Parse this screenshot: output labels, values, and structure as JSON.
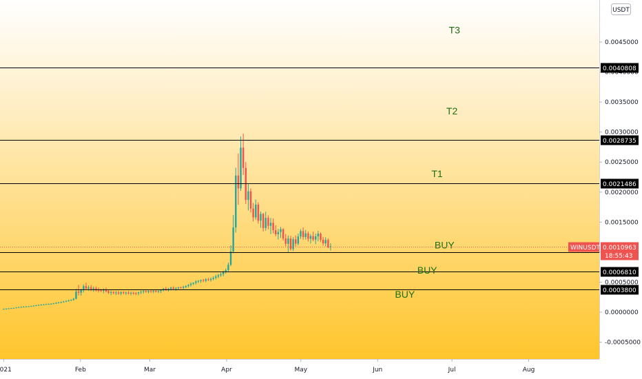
{
  "chart_data": {
    "type": "candlestick",
    "symbol": "WINUSDT",
    "currency": "USDT",
    "countdown": "18:55:43",
    "price_label": "0.0010963",
    "last_price": 0.0010963,
    "y_ticks": [
      "0.0045000",
      "0.0040000",
      "0.0035000",
      "0.0030000",
      "0.0025000",
      "0.0020000",
      "0.0015000",
      "0.0010000",
      "0.0005000",
      "0.0000000",
      "-0.0005000"
    ],
    "y_tick_values": [
      0.0045,
      0.004,
      0.0035,
      0.003,
      0.0025,
      0.002,
      0.0015,
      0.001,
      0.0005,
      0,
      -0.0005
    ],
    "x_ticks": [
      "2021",
      "Feb",
      "Mar",
      "Apr",
      "May",
      "Jun",
      "Jul",
      "Aug"
    ],
    "x_tick_days": [
      0,
      31,
      59,
      90,
      120,
      151,
      181,
      212
    ],
    "ylim": [
      -0.00078,
      0.0052
    ],
    "xlim_days": [
      -1.5,
      240.5
    ],
    "levels": [
      {
        "price": 0.0040808,
        "label": "0.0040808"
      },
      {
        "price": 0.0028735,
        "label": "0.0028735"
      },
      {
        "price": 0.0021486,
        "label": "0.0021486"
      },
      {
        "price": 0.0009961,
        "label": "0.0009961"
      },
      {
        "price": 0.000681,
        "label": "0.0006810"
      },
      {
        "price": 0.00038,
        "label": "0.0003800"
      }
    ],
    "annotations": [
      {
        "text": "T3",
        "day": 182,
        "price": 0.0047
      },
      {
        "text": "T2",
        "day": 181,
        "price": 0.00335
      },
      {
        "text": "T1",
        "day": 175,
        "price": 0.00231
      },
      {
        "text": "BUY",
        "day": 178,
        "price": 0.00112
      },
      {
        "text": "BUY",
        "day": 171,
        "price": 0.0007
      },
      {
        "text": "BUY",
        "day": 162,
        "price": 0.0003
      }
    ],
    "ohlc": [
      [
        5.2e-05,
        6.1e-05,
        4.7e-05,
        5.6e-05
      ],
      [
        5.6e-05,
        6.5e-05,
        5e-05,
        5.9e-05
      ],
      [
        5.9e-05,
        6.8e-05,
        5.3e-05,
        6.3e-05
      ],
      [
        6.3e-05,
        7.2e-05,
        5.8e-05,
        6.7e-05
      ],
      [
        6.7e-05,
        7.5e-05,
        6.3e-05,
        7.1e-05
      ],
      [
        7.1e-05,
        8.2e-05,
        6.7e-05,
        7.8e-05
      ],
      [
        7.8e-05,
        8.9e-05,
        7.3e-05,
        8.4e-05
      ],
      [
        8.4e-05,
        9.5e-05,
        7.9e-05,
        8.8e-05
      ],
      [
        8.8e-05,
        9.7e-05,
        8.2e-05,
        9.1e-05
      ],
      [
        9.1e-05,
        0.000101,
        8.5e-05,
        9.4e-05
      ],
      [
        9.4e-05,
        0.000104,
        8.9e-05,
        9.8e-05
      ],
      [
        9.8e-05,
        0.000108,
        9.2e-05,
        0.000102
      ],
      [
        0.000102,
        0.000114,
        9.6e-05,
        0.000108
      ],
      [
        0.000108,
        0.000121,
        0.000102,
        0.000114
      ],
      [
        0.000114,
        0.000128,
        0.000108,
        0.00012
      ],
      [
        0.00012,
        0.000133,
        0.000112,
        0.000125
      ],
      [
        0.000125,
        0.000137,
        0.000117,
        0.000129
      ],
      [
        0.000129,
        0.000141,
        0.000121,
        0.000133
      ],
      [
        0.000133,
        0.000145,
        0.000125,
        0.000137
      ],
      [
        0.000137,
        0.000149,
        0.000129,
        0.000141
      ],
      [
        0.000141,
        0.000156,
        0.000133,
        0.000147
      ],
      [
        0.000147,
        0.000165,
        0.000139,
        0.000155
      ],
      [
        0.000155,
        0.000171,
        0.000146,
        0.00016
      ],
      [
        0.00016,
        0.000179,
        0.00015,
        0.000168
      ],
      [
        0.000168,
        0.000189,
        0.000159,
        0.000176
      ],
      [
        0.000176,
        0.000198,
        0.000167,
        0.000186
      ],
      [
        0.000186,
        0.000208,
        0.000176,
        0.000195
      ],
      [
        0.000195,
        0.000214,
        0.000184,
        0.000205
      ],
      [
        0.000205,
        0.000239,
        0.000192,
        0.000222
      ],
      [
        0.000222,
        0.000391,
        0.000214,
        0.000343
      ],
      [
        0.000343,
        0.000454,
        0.000281,
        0.000325
      ],
      [
        0.000325,
        0.00039,
        0.000276,
        0.00037
      ],
      [
        0.00037,
        0.000462,
        0.000327,
        0.000433
      ],
      [
        0.000433,
        0.000493,
        0.000366,
        0.000392
      ],
      [
        0.000392,
        0.000446,
        0.000357,
        0.000413
      ],
      [
        0.000413,
        0.00045,
        0.000352,
        0.000384
      ],
      [
        0.000384,
        0.000427,
        0.000339,
        0.000397
      ],
      [
        0.000397,
        0.000428,
        0.000345,
        0.000373
      ],
      [
        0.000373,
        0.000412,
        0.000327,
        0.000371
      ],
      [
        0.000371,
        0.000389,
        0.000335,
        0.000359
      ],
      [
        0.000359,
        0.000398,
        0.000315,
        0.000378
      ],
      [
        0.000378,
        0.00041,
        0.000328,
        0.000349
      ],
      [
        0.000349,
        0.000377,
        0.000303,
        0.000325
      ],
      [
        0.000325,
        0.00036,
        0.000284,
        0.000334
      ],
      [
        0.000334,
        0.000351,
        0.000299,
        0.000319
      ],
      [
        0.000319,
        0.000354,
        0.000284,
        0.000329
      ],
      [
        0.000329,
        0.000355,
        0.000289,
        0.000311
      ],
      [
        0.000311,
        0.000349,
        0.000281,
        0.000332
      ],
      [
        0.000332,
        0.000352,
        0.000298,
        0.000319
      ],
      [
        0.000319,
        0.000344,
        0.000286,
        0.000327
      ],
      [
        0.000327,
        0.000352,
        0.000295,
        0.000312
      ],
      [
        0.000312,
        0.000341,
        0.000281,
        0.000323
      ],
      [
        0.000323,
        0.000342,
        0.000293,
        0.000318
      ],
      [
        0.000318,
        0.000335,
        0.000284,
        0.000315
      ],
      [
        0.000315,
        0.000341,
        0.000282,
        0.00033
      ],
      [
        0.00033,
        0.000363,
        0.000301,
        0.000341
      ],
      [
        0.000341,
        0.000374,
        0.000309,
        0.000352
      ],
      [
        0.000352,
        0.000362,
        0.000325,
        0.000339
      ],
      [
        0.000339,
        0.000364,
        0.000313,
        0.000355
      ],
      [
        0.000355,
        0.000366,
        0.000322,
        0.000344
      ],
      [
        0.000344,
        0.000379,
        0.000316,
        0.000356
      ],
      [
        0.000356,
        0.000372,
        0.000329,
        0.000342
      ],
      [
        0.000342,
        0.000364,
        0.000318,
        0.000353
      ],
      [
        0.000353,
        0.000383,
        0.00032,
        0.000367
      ],
      [
        0.000367,
        0.000404,
        0.000346,
        0.000392
      ],
      [
        0.000392,
        0.000421,
        0.000356,
        0.000374
      ],
      [
        0.000374,
        0.000406,
        0.000344,
        0.000387
      ],
      [
        0.000387,
        0.000423,
        0.000363,
        0.000408
      ],
      [
        0.000408,
        0.000431,
        0.000373,
        0.000389
      ],
      [
        0.000389,
        0.000417,
        0.000358,
        0.0004
      ],
      [
        0.0004,
        0.000422,
        0.000375,
        0.000415
      ],
      [
        0.000415,
        0.000427,
        0.000392,
        0.000404
      ],
      [
        0.000404,
        0.00044,
        0.000376,
        0.000421
      ],
      [
        0.000421,
        0.000448,
        0.000397,
        0.000436
      ],
      [
        0.000436,
        0.000468,
        0.000411,
        0.000455
      ],
      [
        0.000455,
        0.000496,
        0.000426,
        0.000473
      ],
      [
        0.000473,
        0.000498,
        0.000453,
        0.00049
      ],
      [
        0.00049,
        0.000531,
        0.000461,
        0.000512
      ],
      [
        0.000512,
        0.000536,
        0.000486,
        0.000521
      ],
      [
        0.000521,
        0.000546,
        0.000489,
        0.000535
      ],
      [
        0.000535,
        0.000555,
        0.000501,
        0.000524
      ],
      [
        0.000524,
        0.000567,
        0.000498,
        0.000548
      ],
      [
        0.000548,
        0.000573,
        0.00052,
        0.000536
      ],
      [
        0.000536,
        0.000576,
        0.000509,
        0.000555
      ],
      [
        0.000555,
        0.000596,
        0.00053,
        0.000573
      ],
      [
        0.000573,
        0.000624,
        0.000545,
        0.000594
      ],
      [
        0.000594,
        0.000637,
        0.000566,
        0.000615
      ],
      [
        0.000615,
        0.000661,
        0.000589,
        0.000632
      ],
      [
        0.000632,
        0.000691,
        0.000598,
        0.000668
      ],
      [
        0.000668,
        0.000728,
        0.000641,
        0.000702
      ],
      [
        0.000702,
        0.000827,
        0.000663,
        0.000789
      ],
      [
        0.000789,
        0.001114,
        0.000768,
        0.001012
      ],
      [
        0.001012,
        0.001617,
        0.000982,
        0.001411
      ],
      [
        0.001411,
        0.002406,
        0.001325,
        0.002276
      ],
      [
        0.002276,
        0.002642,
        0.00179,
        0.002061
      ],
      [
        0.002061,
        0.002928,
        0.00202,
        0.002741
      ],
      [
        0.002741,
        0.002975,
        0.002286,
        0.002403
      ],
      [
        0.002403,
        0.002502,
        0.001801,
        0.00187
      ],
      [
        0.00187,
        0.002146,
        0.001695,
        0.002014
      ],
      [
        0.002014,
        0.002062,
        0.001661,
        0.001726
      ],
      [
        0.001726,
        0.001819,
        0.001512,
        0.001579
      ],
      [
        0.001579,
        0.001878,
        0.001541,
        0.001792
      ],
      [
        0.001792,
        0.001831,
        0.001475,
        0.001523
      ],
      [
        0.001523,
        0.001676,
        0.001406,
        0.001638
      ],
      [
        0.001638,
        0.001654,
        0.001345,
        0.001402
      ],
      [
        0.001402,
        0.001673,
        0.001358,
        0.001571
      ],
      [
        0.001571,
        0.001612,
        0.001379,
        0.001438
      ],
      [
        0.001438,
        0.001569,
        0.001301,
        0.001489
      ],
      [
        0.001489,
        0.001563,
        0.00131,
        0.001367
      ],
      [
        0.001367,
        0.001449,
        0.001262,
        0.001298
      ],
      [
        0.001298,
        0.001389,
        0.001211,
        0.001336
      ],
      [
        0.001336,
        0.00142,
        0.001237,
        0.001383
      ],
      [
        0.001383,
        0.001399,
        0.001193,
        0.001228
      ],
      [
        0.001228,
        0.001301,
        0.001097,
        0.00114
      ],
      [
        0.00114,
        0.001278,
        0.000997,
        0.001227
      ],
      [
        0.001227,
        0.001274,
        0.001025,
        0.001052
      ],
      [
        0.001052,
        0.00125,
        0.001018,
        0.001214
      ],
      [
        0.001214,
        0.00128,
        0.001094,
        0.001142
      ],
      [
        0.001142,
        0.001311,
        0.001112,
        0.001261
      ],
      [
        0.001261,
        0.001384,
        0.001222,
        0.001351
      ],
      [
        0.001351,
        0.001412,
        0.001206,
        0.001252
      ],
      [
        0.001252,
        0.00137,
        0.001209,
        0.001314
      ],
      [
        0.001314,
        0.001345,
        0.001176,
        0.001223
      ],
      [
        0.001223,
        0.001302,
        0.001144,
        0.001268
      ],
      [
        0.001268,
        0.00134,
        0.001183,
        0.001209
      ],
      [
        0.001209,
        0.001307,
        0.001133,
        0.001263
      ],
      [
        0.001263,
        0.001354,
        0.001183,
        0.001309
      ],
      [
        0.001309,
        0.00133,
        0.001168,
        0.001206
      ],
      [
        0.001206,
        0.001252,
        0.001107,
        0.001146
      ],
      [
        0.001146,
        0.001247,
        0.001096,
        0.001203
      ],
      [
        0.001203,
        0.00123,
        0.001065,
        0.00108
      ],
      [
        0.00108,
        0.001148,
        0.001026,
        0.001096
      ]
    ]
  }
}
